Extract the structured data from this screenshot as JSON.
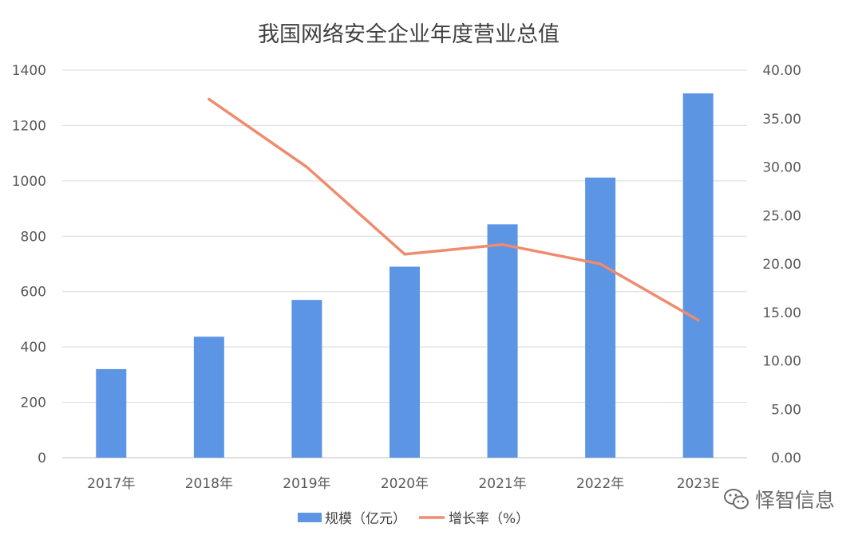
{
  "chart_data": {
    "type": "bar+line",
    "title": "我国网络安全企业年度营业总值",
    "categories": [
      "2017年",
      "2018年",
      "2019年",
      "2020年",
      "2021年",
      "2022年",
      "2023E"
    ],
    "series": [
      {
        "name": "规模（亿元）",
        "type": "bar",
        "axis": "left",
        "color": "#5b95e3",
        "values": [
          320,
          437,
          570,
          690,
          843,
          1012,
          1316
        ]
      },
      {
        "name": "增长率（%）",
        "type": "line",
        "axis": "right",
        "color": "#ef8b6e",
        "values": [
          null,
          37.0,
          30.0,
          21.0,
          22.0,
          20.0,
          14.2
        ]
      }
    ],
    "y_left": {
      "range": [
        0,
        1400
      ],
      "ticks": [
        "0",
        "200",
        "400",
        "600",
        "800",
        "1000",
        "1200",
        "1400"
      ]
    },
    "y_right": {
      "range": [
        0,
        40
      ],
      "ticks": [
        "0.00",
        "5.00",
        "10.00",
        "15.00",
        "20.00",
        "25.00",
        "30.00",
        "35.00",
        "40.00"
      ]
    },
    "grid": true,
    "legend": "bottom"
  },
  "watermark": {
    "text": "怿智信息",
    "icon": "wechat-icon"
  }
}
